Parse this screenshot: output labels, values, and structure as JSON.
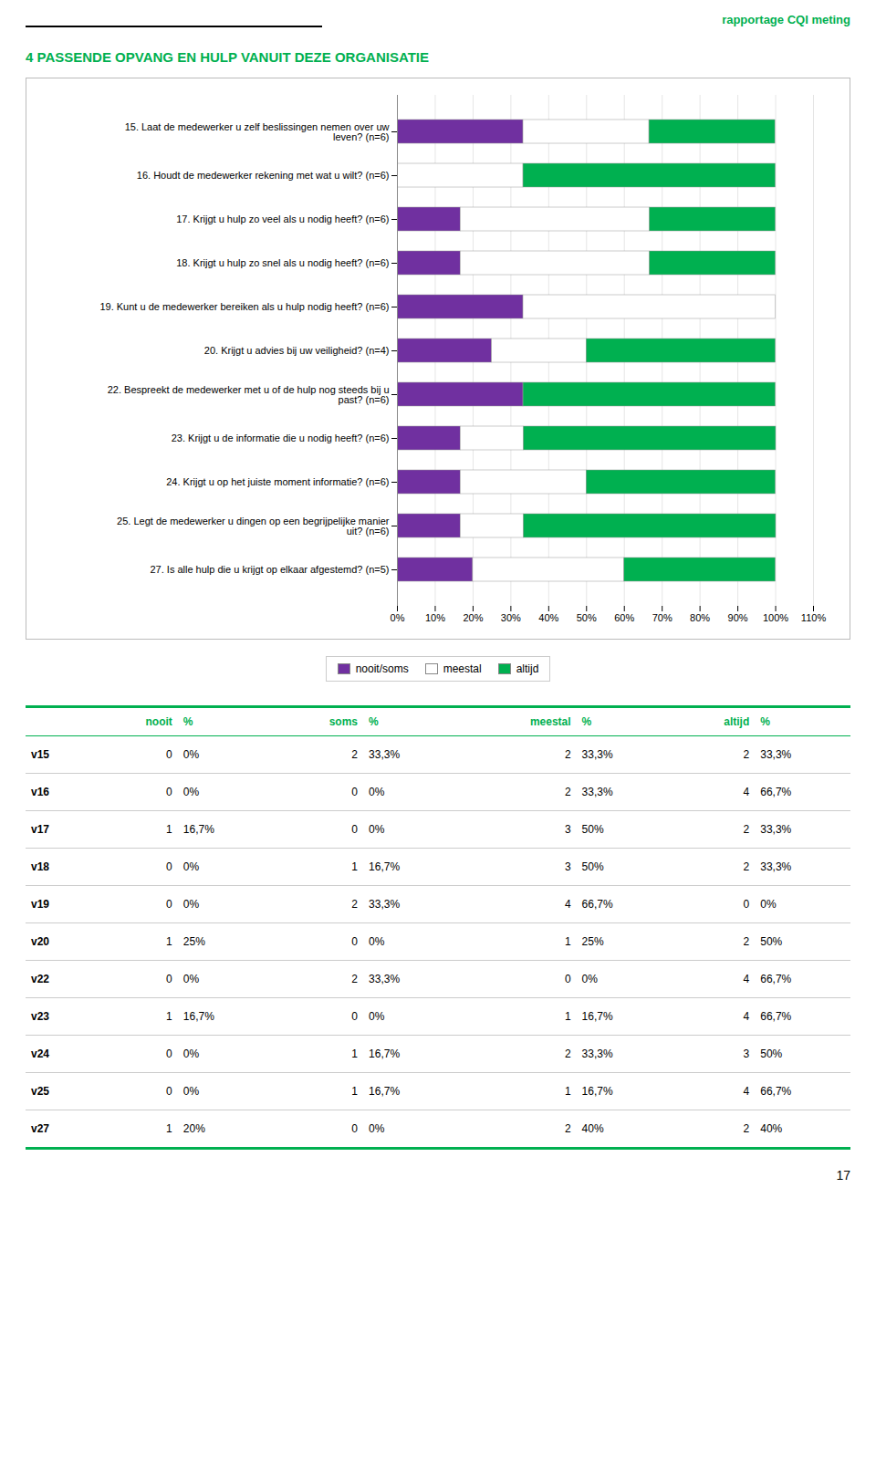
{
  "chart_data": {
    "type": "bar",
    "title": "4 PASSENDE OPVANG EN HULP VANUIT DEZE ORGANISATIE",
    "annotations": [
      "rapportage CQI meting",
      "17"
    ],
    "orientation": "horizontal",
    "stacked": true,
    "grid": true,
    "legend": "bottom",
    "categories": [
      "15. Laat de medewerker u zelf beslissingen nemen over uw\nleven? (n=6)",
      "16. Houdt de medewerker rekening met wat u wilt? (n=6)",
      "17. Krijgt u hulp zo veel als u nodig heeft? (n=6)",
      "18. Krijgt u hulp zo snel als u nodig heeft? (n=6)",
      "19. Kunt u de medewerker bereiken als u hulp nodig heeft? (n=6)",
      "20. Krijgt u advies bij uw veiligheid? (n=4)",
      "22. Bespreekt de medewerker met u of de hulp nog steeds bij u\npast? (n=6)",
      "23. Krijgt u de informatie die u nodig heeft? (n=6)",
      "24. Krijgt u op het juiste moment informatie? (n=6)",
      "25. Legt de medewerker u dingen op een begrijpelijke manier\nuit? (n=6)",
      "27. Is alle hulp die u krijgt op elkaar afgestemd? (n=5)"
    ],
    "series": [
      {
        "name": "nooit/soms",
        "color": "#7030A0",
        "values": [
          33.3,
          0.0,
          16.7,
          16.7,
          33.3,
          25.0,
          33.3,
          16.7,
          16.7,
          16.7,
          20.0
        ]
      },
      {
        "name": "meestal",
        "color": "#FFFFFF",
        "values": [
          33.3,
          33.3,
          50.0,
          50.0,
          66.7,
          25.0,
          0.0,
          16.7,
          33.3,
          16.7,
          40.0
        ]
      },
      {
        "name": "altijd",
        "color": "#00B050",
        "values": [
          33.3,
          66.7,
          33.3,
          33.3,
          0.0,
          50.0,
          66.7,
          66.7,
          50.0,
          66.7,
          40.0
        ]
      }
    ],
    "xlim": [
      0,
      110
    ],
    "xticks": [
      {
        "value": 0,
        "label": "0%"
      },
      {
        "value": 10,
        "label": "10%"
      },
      {
        "value": 20,
        "label": "20%"
      },
      {
        "value": 30,
        "label": "30%"
      },
      {
        "value": 40,
        "label": "40%"
      },
      {
        "value": 50,
        "label": "50%"
      },
      {
        "value": 60,
        "label": "60%"
      },
      {
        "value": 70,
        "label": "70%"
      },
      {
        "value": 80,
        "label": "80%"
      },
      {
        "value": 90,
        "label": "90%"
      },
      {
        "value": 100,
        "label": "100%"
      },
      {
        "value": 110,
        "label": "110%"
      }
    ],
    "table": {
      "columns": [
        "nooit",
        "%",
        "soms",
        "%",
        "meestal",
        "%",
        "altijd",
        "%"
      ],
      "rows": [
        [
          "v15",
          0,
          "0%",
          2,
          "33,3%",
          2,
          "33,3%",
          2,
          "33,3%"
        ],
        [
          "v16",
          0,
          "0%",
          0,
          "0%",
          2,
          "33,3%",
          4,
          "66,7%"
        ],
        [
          "v17",
          1,
          "16,7%",
          0,
          "0%",
          3,
          "50%",
          2,
          "33,3%"
        ],
        [
          "v18",
          0,
          "0%",
          1,
          "16,7%",
          3,
          "50%",
          2,
          "33,3%"
        ],
        [
          "v19",
          0,
          "0%",
          2,
          "33,3%",
          4,
          "66,7%",
          0,
          "0%"
        ],
        [
          "v20",
          1,
          "25%",
          0,
          "0%",
          1,
          "25%",
          2,
          "50%"
        ],
        [
          "v22",
          0,
          "0%",
          2,
          "33,3%",
          0,
          "0%",
          4,
          "66,7%"
        ],
        [
          "v23",
          1,
          "16,7%",
          0,
          "0%",
          1,
          "16,7%",
          4,
          "66,7%"
        ],
        [
          "v24",
          0,
          "0%",
          1,
          "16,7%",
          2,
          "33,3%",
          3,
          "50%"
        ],
        [
          "v25",
          0,
          "0%",
          1,
          "16,7%",
          1,
          "16,7%",
          4,
          "66,7%"
        ],
        [
          "v27",
          1,
          "20%",
          0,
          "0%",
          2,
          "40%",
          2,
          "40%"
        ]
      ]
    }
  }
}
